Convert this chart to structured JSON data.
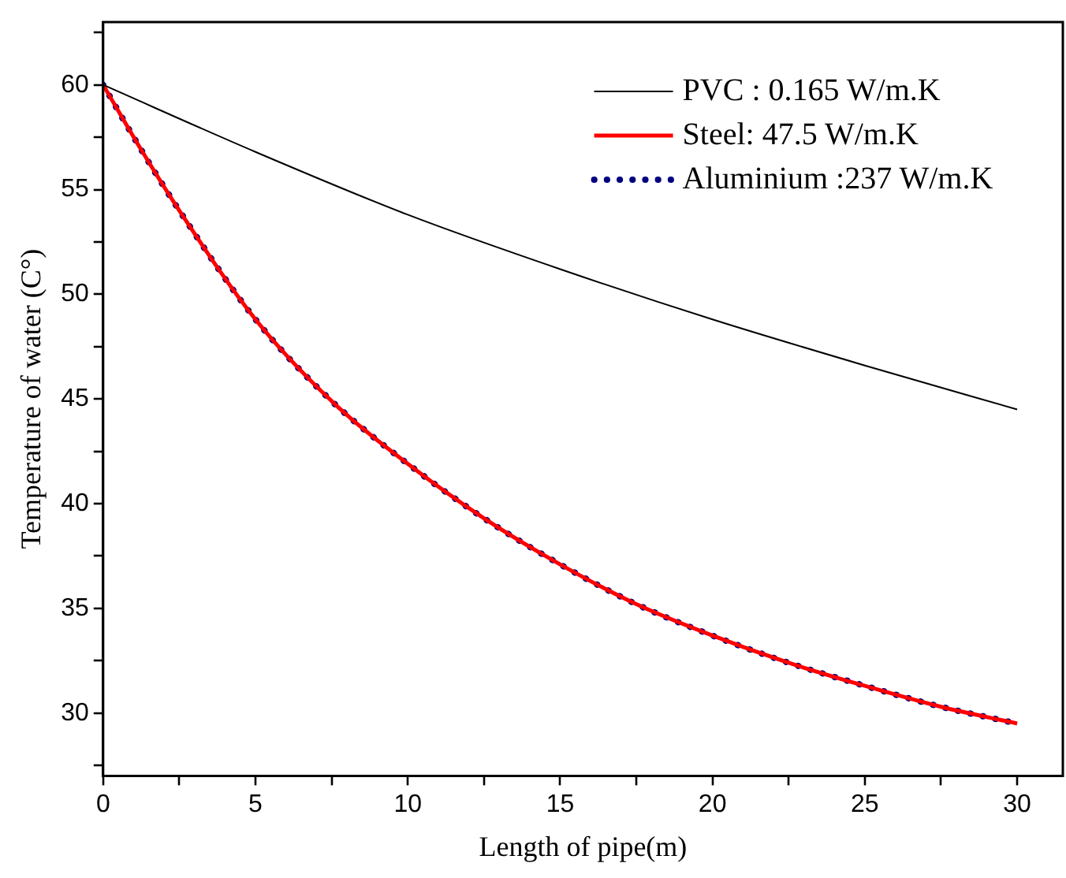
{
  "chart_data": {
    "type": "line",
    "xlabel": "Length of pipe(m)",
    "ylabel": "Temperature of water (C°)",
    "x": [
      0,
      1.25,
      2.5,
      5,
      7.5,
      10,
      12.5,
      15,
      17.5,
      20,
      22.5,
      25,
      27.5,
      30
    ],
    "series": [
      {
        "name": "PVC : 0.165 W/m.K",
        "color": "#000000",
        "line_style": "solid",
        "x": [
          0,
          5,
          10,
          15,
          20,
          25,
          30
        ],
        "values": [
          60,
          56.8,
          53.8,
          51.2,
          48.8,
          46.6,
          44.5
        ]
      },
      {
        "name": "Steel: 47.5 W/m.K",
        "color": "#ff0000",
        "line_style": "solid",
        "values": [
          60,
          56.9,
          54,
          48.8,
          44.9,
          41.9,
          39.3,
          37.1,
          35.2,
          33.7,
          32.4,
          31.3,
          30.3,
          29.5
        ]
      },
      {
        "name": "Aluminium :237 W/m.K",
        "color": "#000080",
        "line_style": "dotted",
        "values": [
          60,
          56.9,
          54,
          48.8,
          44.9,
          41.9,
          39.3,
          37.1,
          35.2,
          33.7,
          32.4,
          31.3,
          30.3,
          29.5
        ]
      }
    ],
    "xlim": [
      0,
      31.5
    ],
    "xticks": [
      0,
      {
        "value": 2.5,
        "label": null
      },
      5,
      {
        "value": 7.5,
        "label": null
      },
      10,
      {
        "value": 12.5,
        "label": null
      },
      15,
      {
        "value": 17.5,
        "label": null
      },
      20,
      {
        "value": 22.5,
        "label": null
      },
      25,
      {
        "value": 27.5,
        "label": null
      },
      30
    ],
    "ylim": [
      27,
      63
    ],
    "yticks": [
      {
        "value": 27.5,
        "label": null
      },
      30,
      {
        "value": 32.5,
        "label": null
      },
      35,
      {
        "value": 37.5,
        "label": null
      },
      40,
      {
        "value": 42.5,
        "label": null
      },
      45,
      {
        "value": 47.5,
        "label": null
      },
      50,
      {
        "value": 52.5,
        "label": null
      },
      55,
      {
        "value": 57.5,
        "label": null
      },
      60,
      {
        "value": 62.5,
        "label": null
      }
    ],
    "legend": "top right",
    "marker": "none"
  }
}
